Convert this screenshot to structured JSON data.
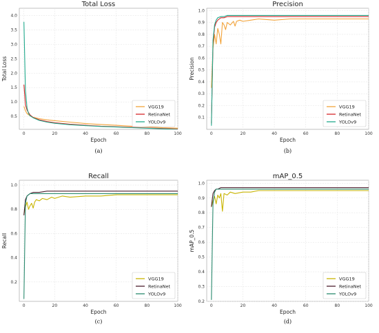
{
  "chart_data": [
    {
      "type": "line",
      "title": "Total Loss",
      "xlabel": "Epoch",
      "ylabel": "Total Loss",
      "caption": "(a)",
      "xlim": [
        -3,
        100
      ],
      "ylim": [
        0.05,
        4.25
      ],
      "x_ticks": [
        0,
        20,
        40,
        60,
        80,
        100
      ],
      "y_ticks": [
        0.5,
        1.0,
        1.5,
        2.0,
        2.5,
        3.0,
        3.5,
        4.0
      ],
      "y_tick_labels": [
        "0.5",
        "1.0",
        "1.5",
        "2.0",
        "2.5",
        "3.0",
        "3.5",
        "4.0"
      ],
      "grid": true,
      "legend_position": "bottom-right",
      "series": [
        {
          "name": "VGG19",
          "color": "#f2a33a",
          "x": [
            0,
            1,
            2,
            4,
            6,
            10,
            15,
            20,
            30,
            40,
            50,
            60,
            70,
            80,
            90,
            100
          ],
          "y": [
            0.85,
            0.7,
            0.6,
            0.52,
            0.47,
            0.42,
            0.38,
            0.35,
            0.3,
            0.25,
            0.22,
            0.19,
            0.16,
            0.14,
            0.11,
            0.09
          ]
        },
        {
          "name": "RetinaNet",
          "color": "#d62728",
          "x": [
            0,
            1,
            2,
            4,
            6,
            10,
            15,
            20,
            30,
            40,
            50,
            60,
            70,
            80,
            90,
            100
          ],
          "y": [
            1.6,
            0.9,
            0.72,
            0.55,
            0.46,
            0.38,
            0.32,
            0.28,
            0.23,
            0.19,
            0.16,
            0.14,
            0.12,
            0.1,
            0.08,
            0.06
          ]
        },
        {
          "name": "YOLOv9",
          "color": "#1fa98c",
          "x": [
            0,
            1,
            2,
            3,
            4,
            6,
            10,
            15,
            20,
            30,
            40,
            50,
            60,
            70,
            80,
            90,
            100
          ],
          "y": [
            3.78,
            1.4,
            0.8,
            0.6,
            0.52,
            0.45,
            0.36,
            0.3,
            0.26,
            0.21,
            0.18,
            0.15,
            0.13,
            0.11,
            0.09,
            0.07,
            0.05
          ]
        }
      ]
    },
    {
      "type": "line",
      "title": "Precision",
      "xlabel": "Epoch",
      "ylabel": "Precision",
      "caption": "(b)",
      "xlim": [
        -3,
        100
      ],
      "ylim": [
        0.0,
        1.02
      ],
      "x_ticks": [
        0,
        20,
        40,
        60,
        80,
        100
      ],
      "y_ticks": [
        0.1,
        0.2,
        0.3,
        0.4,
        0.5,
        0.6,
        0.7,
        0.8,
        0.9,
        1.0
      ],
      "y_tick_labels": [
        "0.1",
        "0.2",
        "0.3",
        "0.4",
        "0.5",
        "0.6",
        "0.7",
        "0.8",
        "0.9",
        "1.0"
      ],
      "grid": true,
      "legend_position": "bottom-right",
      "series": [
        {
          "name": "VGG19",
          "color": "#f2a33a",
          "x": [
            0,
            1,
            2,
            3,
            4,
            5,
            6,
            7,
            8,
            9,
            10,
            12,
            14,
            15,
            16,
            18,
            20,
            25,
            30,
            40,
            50,
            60,
            70,
            80,
            90,
            100
          ],
          "y": [
            0.35,
            0.68,
            0.8,
            0.72,
            0.85,
            0.8,
            0.72,
            0.9,
            0.88,
            0.84,
            0.9,
            0.88,
            0.91,
            0.87,
            0.91,
            0.92,
            0.91,
            0.92,
            0.93,
            0.92,
            0.93,
            0.93,
            0.93,
            0.93,
            0.93,
            0.93
          ]
        },
        {
          "name": "RetinaNet",
          "color": "#d62728",
          "x": [
            0,
            1,
            2,
            3,
            4,
            5,
            6,
            8,
            10,
            15,
            20,
            30,
            40,
            50,
            60,
            70,
            80,
            90,
            100
          ],
          "y": [
            0.05,
            0.72,
            0.86,
            0.9,
            0.92,
            0.93,
            0.94,
            0.94,
            0.95,
            0.95,
            0.95,
            0.95,
            0.95,
            0.95,
            0.95,
            0.95,
            0.95,
            0.95,
            0.95
          ]
        },
        {
          "name": "YOLOv9",
          "color": "#1fa98c",
          "x": [
            0,
            1,
            2,
            3,
            4,
            6,
            8,
            10,
            15,
            20,
            30,
            40,
            50,
            60,
            70,
            80,
            90,
            100
          ],
          "y": [
            0.03,
            0.75,
            0.88,
            0.92,
            0.94,
            0.95,
            0.95,
            0.96,
            0.96,
            0.96,
            0.96,
            0.96,
            0.96,
            0.96,
            0.96,
            0.96,
            0.96,
            0.96
          ]
        }
      ]
    },
    {
      "type": "line",
      "title": "Recall",
      "xlabel": "Epoch",
      "ylabel": "Recall",
      "caption": "(c)",
      "xlim": [
        -3,
        100
      ],
      "ylim": [
        0.04,
        1.04
      ],
      "x_ticks": [
        0,
        20,
        40,
        60,
        80,
        100
      ],
      "y_ticks": [
        0.2,
        0.4,
        0.6,
        0.8,
        1.0
      ],
      "y_tick_labels": [
        "0.2",
        "0.4",
        "0.6",
        "0.8",
        "1.0"
      ],
      "grid": true,
      "legend_position": "bottom-right",
      "series": [
        {
          "name": "VGG19",
          "color": "#c8b400",
          "x": [
            0,
            1,
            2,
            3,
            4,
            5,
            6,
            7,
            8,
            10,
            12,
            15,
            18,
            20,
            25,
            30,
            40,
            50,
            60,
            70,
            80,
            90,
            100
          ],
          "y": [
            0.76,
            0.82,
            0.86,
            0.8,
            0.83,
            0.85,
            0.81,
            0.86,
            0.88,
            0.87,
            0.89,
            0.88,
            0.9,
            0.89,
            0.91,
            0.9,
            0.91,
            0.91,
            0.92,
            0.92,
            0.92,
            0.92,
            0.92
          ]
        },
        {
          "name": "RetinaNet",
          "color": "#4a1c2c",
          "x": [
            0,
            1,
            2,
            3,
            4,
            6,
            8,
            10,
            15,
            20,
            30,
            40,
            50,
            60,
            70,
            80,
            90,
            100
          ],
          "y": [
            0.75,
            0.88,
            0.91,
            0.92,
            0.93,
            0.94,
            0.94,
            0.94,
            0.95,
            0.95,
            0.95,
            0.95,
            0.95,
            0.95,
            0.95,
            0.95,
            0.95,
            0.95
          ]
        },
        {
          "name": "YOLOv9",
          "color": "#2a8a6e",
          "x": [
            0,
            1,
            2,
            3,
            4,
            6,
            8,
            10,
            15,
            20,
            30,
            40,
            50,
            60,
            70,
            80,
            90,
            100
          ],
          "y": [
            0.06,
            0.85,
            0.91,
            0.92,
            0.93,
            0.93,
            0.93,
            0.93,
            0.93,
            0.93,
            0.93,
            0.93,
            0.93,
            0.93,
            0.93,
            0.93,
            0.93,
            0.93
          ]
        }
      ]
    },
    {
      "type": "line",
      "title": "mAP_0.5",
      "xlabel": "Epoch",
      "ylabel": "mAP_0.5",
      "caption": "(d)",
      "xlim": [
        -3,
        100
      ],
      "ylim": [
        0.2,
        1.02
      ],
      "x_ticks": [
        0,
        20,
        40,
        60,
        80,
        100
      ],
      "y_ticks": [
        0.2,
        0.3,
        0.4,
        0.5,
        0.6,
        0.7,
        0.8,
        0.9,
        1.0
      ],
      "y_tick_labels": [
        "0.2",
        "0.3",
        "0.4",
        "0.5",
        "0.6",
        "0.7",
        "0.8",
        "0.9",
        "1.0"
      ],
      "grid": true,
      "legend_position": "bottom-right",
      "series": [
        {
          "name": "VGG19",
          "color": "#c8b400",
          "x": [
            0,
            1,
            2,
            3,
            4,
            5,
            6,
            7,
            8,
            10,
            12,
            15,
            20,
            25,
            30,
            40,
            50,
            60,
            70,
            80,
            90,
            100
          ],
          "y": [
            0.84,
            0.88,
            0.91,
            0.86,
            0.92,
            0.9,
            0.93,
            0.81,
            0.93,
            0.92,
            0.94,
            0.93,
            0.94,
            0.94,
            0.95,
            0.95,
            0.95,
            0.95,
            0.95,
            0.95,
            0.95,
            0.95
          ]
        },
        {
          "name": "RetinaNet",
          "color": "#4a1c2c",
          "x": [
            0,
            1,
            2,
            3,
            4,
            6,
            8,
            10,
            20,
            30,
            40,
            50,
            60,
            70,
            80,
            90,
            100
          ],
          "y": [
            0.84,
            0.93,
            0.95,
            0.96,
            0.96,
            0.97,
            0.97,
            0.97,
            0.97,
            0.97,
            0.97,
            0.97,
            0.97,
            0.97,
            0.97,
            0.97,
            0.97
          ]
        },
        {
          "name": "YOLOv9",
          "color": "#2a8a6e",
          "x": [
            0,
            1,
            2,
            3,
            4,
            6,
            8,
            10,
            20,
            30,
            40,
            50,
            60,
            70,
            80,
            90,
            100
          ],
          "y": [
            0.21,
            0.86,
            0.94,
            0.96,
            0.96,
            0.96,
            0.96,
            0.96,
            0.96,
            0.96,
            0.96,
            0.96,
            0.96,
            0.96,
            0.96,
            0.96,
            0.96
          ]
        }
      ]
    }
  ]
}
